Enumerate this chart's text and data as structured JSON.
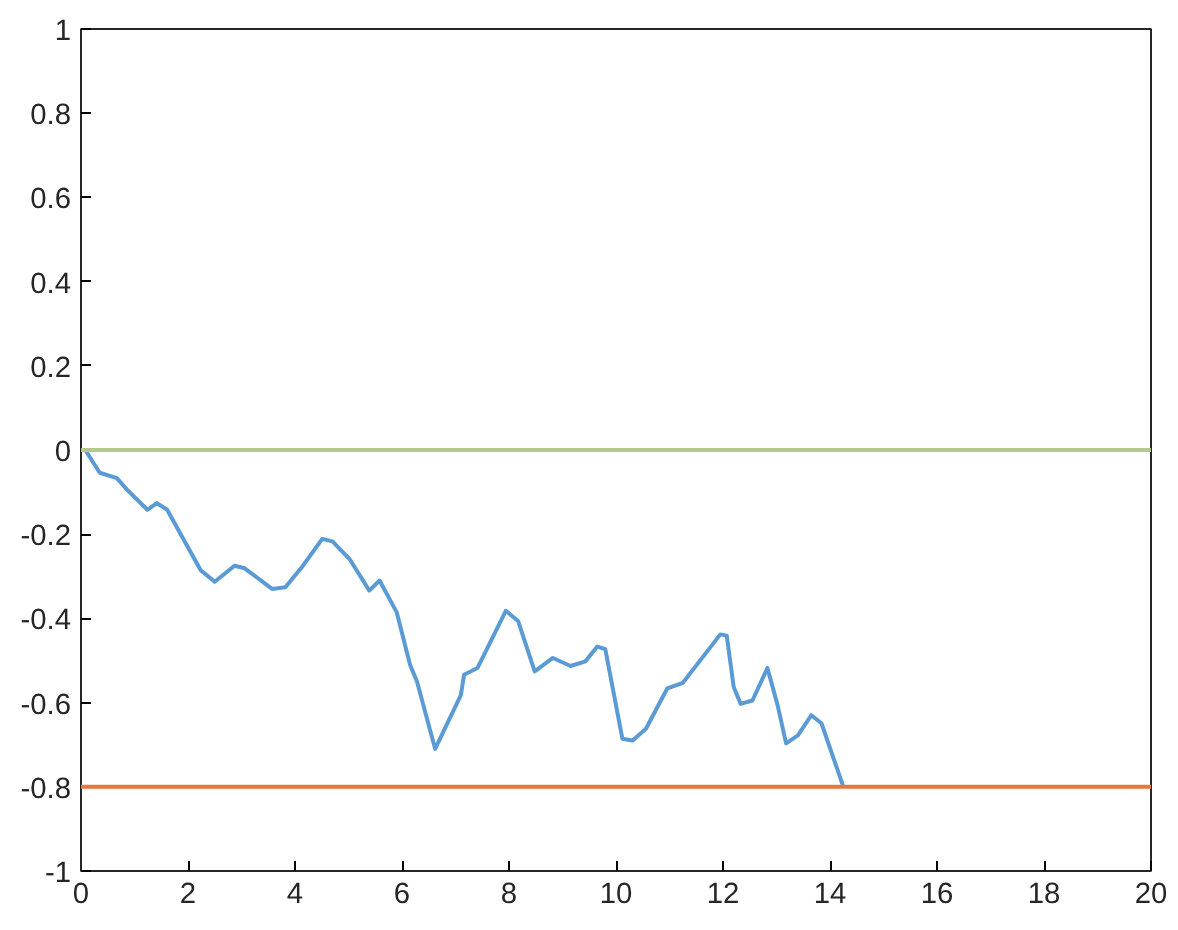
{
  "chart_data": {
    "type": "line",
    "x": [
      0,
      0.08,
      0.35,
      0.67,
      0.86,
      1.24,
      1.42,
      1.61,
      2.24,
      2.5,
      2.87,
      3.06,
      3.57,
      3.82,
      4.13,
      4.51,
      4.7,
      5.02,
      5.39,
      5.58,
      5.9,
      6.15,
      6.28,
      6.62,
      7.1,
      7.16,
      7.41,
      7.94,
      8.17,
      8.48,
      8.82,
      9.15,
      9.43,
      9.65,
      9.8,
      10.12,
      10.31,
      10.56,
      10.96,
      11.25,
      11.95,
      12.07,
      12.2,
      12.33,
      12.55,
      12.83,
      13.02,
      13.18,
      13.4,
      13.65,
      13.84,
      14.25
    ],
    "series": [
      {
        "color": "#5b9bd5",
        "values": [
          0,
          0,
          -0.054,
          -0.067,
          -0.094,
          -0.142,
          -0.126,
          -0.142,
          -0.286,
          -0.313,
          -0.275,
          -0.281,
          -0.33,
          -0.326,
          -0.278,
          -0.211,
          -0.217,
          -0.259,
          -0.334,
          -0.31,
          -0.385,
          -0.51,
          -0.55,
          -0.71,
          -0.582,
          -0.534,
          -0.518,
          -0.382,
          -0.406,
          -0.526,
          -0.494,
          -0.513,
          -0.502,
          -0.467,
          -0.473,
          -0.686,
          -0.69,
          -0.662,
          -0.566,
          -0.553,
          -0.438,
          -0.441,
          -0.563,
          -0.603,
          -0.595,
          -0.518,
          -0.606,
          -0.697,
          -0.678,
          -0.63,
          -0.649,
          -0.8
        ]
      }
    ],
    "ref_lines": [
      {
        "axis": "y",
        "value": 0,
        "color": "#b4c98a"
      },
      {
        "axis": "y",
        "value": -0.8,
        "color": "#e8773a"
      }
    ],
    "xlim": [
      0,
      20
    ],
    "ylim": [
      -1,
      1
    ],
    "xticks": [
      0,
      2,
      4,
      6,
      8,
      10,
      12,
      14,
      16,
      18,
      20
    ],
    "yticks": [
      -1,
      -0.8,
      -0.6,
      -0.4,
      -0.2,
      0,
      0.2,
      0.4,
      0.6,
      0.8,
      1
    ],
    "grid": false
  }
}
